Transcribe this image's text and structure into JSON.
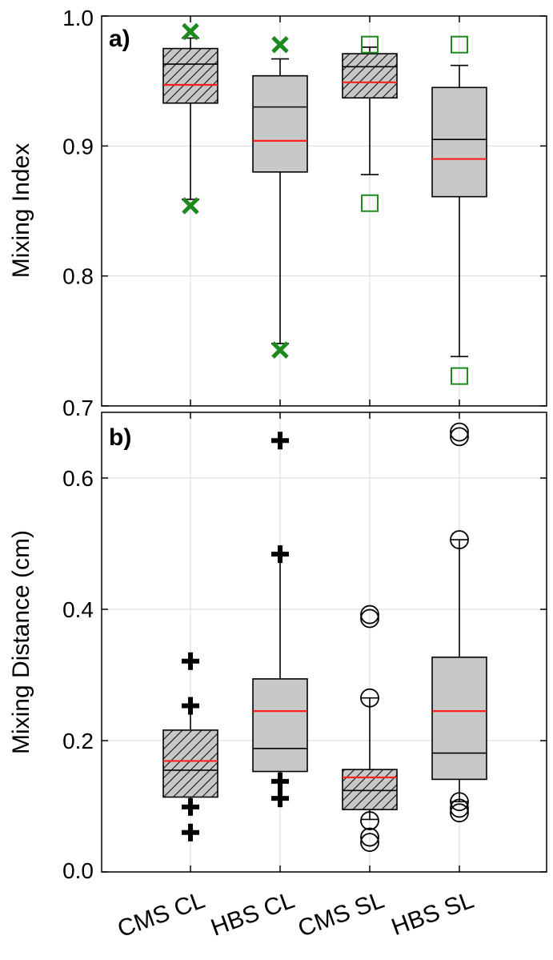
{
  "chart_data": [
    {
      "panel": "a)",
      "type": "box",
      "ylabel": "Mixing Index",
      "ylim": [
        0.7,
        1.0
      ],
      "yticks": [
        0.7,
        0.8,
        0.9,
        1.0
      ],
      "ytick_labels": [
        "0.7",
        "0.8",
        "0.9",
        "1.0"
      ],
      "grid": true,
      "categories": [
        "CMS CL",
        "HBS CL",
        "CMS SL",
        "HBS SL"
      ],
      "boxes": [
        {
          "q1": 0.933,
          "median": 0.963,
          "mean": 0.947,
          "q3": 0.975,
          "whisker_low": 0.859,
          "whisker_high": 0.983,
          "hatched": true,
          "outliers": [
            0.988,
            0.854
          ],
          "outlier_marker": "x"
        },
        {
          "q1": 0.88,
          "median": 0.93,
          "mean": 0.904,
          "q3": 0.954,
          "whisker_low": 0.748,
          "whisker_high": 0.967,
          "hatched": false,
          "outliers": [
            0.978,
            0.743
          ],
          "outlier_marker": "x"
        },
        {
          "q1": 0.937,
          "median": 0.961,
          "mean": 0.949,
          "q3": 0.971,
          "whisker_low": 0.878,
          "whisker_high": 0.976,
          "hatched": true,
          "outliers": [
            0.978,
            0.856
          ],
          "outlier_marker": "square"
        },
        {
          "q1": 0.861,
          "median": 0.905,
          "mean": 0.89,
          "q3": 0.945,
          "whisker_low": 0.738,
          "whisker_high": 0.962,
          "hatched": false,
          "outliers": [
            0.978,
            0.723
          ],
          "outlier_marker": "square"
        }
      ]
    },
    {
      "panel": "b)",
      "type": "box",
      "ylabel": "Mixing Distance (cm)",
      "ylim": [
        0.0,
        0.7
      ],
      "yticks": [
        0.0,
        0.2,
        0.4,
        0.6
      ],
      "ytick_labels": [
        "0.0",
        "0.2",
        "0.4",
        "0.6"
      ],
      "grid": true,
      "categories": [
        "CMS CL",
        "HBS CL",
        "CMS SL",
        "HBS SL"
      ],
      "boxes": [
        {
          "q1": 0.114,
          "median": 0.155,
          "mean": 0.169,
          "q3": 0.216,
          "whisker_low": 0.099,
          "whisker_high": 0.253,
          "hatched": true,
          "outliers": [
            0.321,
            0.253,
            0.099,
            0.06
          ],
          "outlier_marker": "plus"
        },
        {
          "q1": 0.153,
          "median": 0.188,
          "mean": 0.245,
          "q3": 0.294,
          "whisker_low": 0.138,
          "whisker_high": 0.484,
          "hatched": false,
          "outliers": [
            0.657,
            0.484,
            0.138,
            0.112
          ],
          "outlier_marker": "plus"
        },
        {
          "q1": 0.095,
          "median": 0.124,
          "mean": 0.144,
          "q3": 0.156,
          "whisker_low": 0.08,
          "whisker_high": 0.265,
          "hatched": true,
          "outliers": [
            0.392,
            0.386,
            0.265,
            0.078,
            0.053,
            0.045
          ],
          "outlier_marker": "circle"
        },
        {
          "q1": 0.141,
          "median": 0.181,
          "mean": 0.245,
          "q3": 0.327,
          "whisker_low": 0.107,
          "whisker_high": 0.506,
          "hatched": false,
          "outliers": [
            0.67,
            0.663,
            0.506,
            0.107,
            0.097,
            0.09
          ],
          "outlier_marker": "circle"
        }
      ]
    }
  ],
  "colors": {
    "box_fill": "#c8c8c8",
    "mean_line": "#ff2020",
    "outlier_panel_a": "#1e8a1e",
    "outlier_panel_b": "#000000",
    "grid": "#d9d9d9"
  }
}
